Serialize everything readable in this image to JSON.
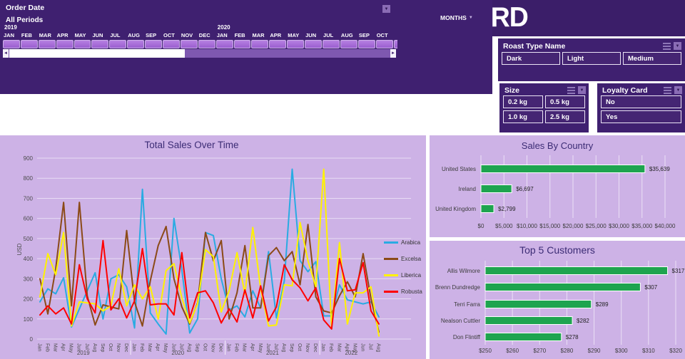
{
  "header": {
    "title": "COFFEE SALES DASHBOARD"
  },
  "colors": {
    "header_bg": "#3B1E69",
    "panel_bg": "#3F2070",
    "chart_panel_bg": "#CDB2E6",
    "timeline_bar": "#A369D6",
    "bar_green": "#1EA44F",
    "title_text": "#3C2C75",
    "axis_text": "#4C4C4C"
  },
  "order_date": {
    "title": "Order Date",
    "range_label": "All Periods",
    "granularity_label": "MONTHS",
    "years": [
      {
        "label": "2019",
        "month_index": 0
      },
      {
        "label": "2020",
        "month_index": 12
      }
    ],
    "visible_months": [
      "JAN",
      "FEB",
      "MAR",
      "APR",
      "MAY",
      "JUN",
      "JUL",
      "AUG",
      "SEP",
      "OCT",
      "NOV",
      "DEC",
      "JAN",
      "FEB",
      "MAR",
      "APR",
      "MAY",
      "JUN",
      "JUL",
      "AUG",
      "SEP",
      "OCT"
    ]
  },
  "slicers": [
    {
      "id": "roast",
      "title": "Roast Type Name",
      "columns": 3,
      "options": [
        "Dark",
        "Light",
        "Medium"
      ]
    },
    {
      "id": "size",
      "title": "Size",
      "columns": 2,
      "options": [
        "0.2 kg",
        "0.5 kg",
        "1.0 kg",
        "2.5 kg"
      ]
    },
    {
      "id": "loyalty",
      "title": "Loyalty Card",
      "columns": 1,
      "options": [
        "No",
        "Yes"
      ]
    }
  ],
  "chart_data": [
    {
      "id": "total_sales_over_time",
      "type": "line",
      "title": "Total Sales Over Time",
      "ylabel": "USD",
      "ylim": [
        0,
        900
      ],
      "ytick_step": 100,
      "grid": true,
      "legend_position": "right",
      "year_groups": [
        {
          "label": "2019",
          "span": 12
        },
        {
          "label": "2020",
          "span": 12
        },
        {
          "label": "2021",
          "span": 12
        },
        {
          "label": "2022",
          "span": 8
        }
      ],
      "categories": [
        "Jan",
        "Feb",
        "Mar",
        "Apr",
        "May",
        "Jun",
        "Jul",
        "Aug",
        "Sep",
        "Oct",
        "Nov",
        "Dec",
        "Jan",
        "Feb",
        "Mar",
        "Apr",
        "May",
        "Jun",
        "Jul",
        "Aug",
        "Sep",
        "Oct",
        "Nov",
        "Dec",
        "Jan",
        "Feb",
        "Mar",
        "Apr",
        "May",
        "Jun",
        "Jul",
        "Aug",
        "Sep",
        "Oct",
        "Nov",
        "Dec",
        "Jan",
        "Feb",
        "Mar",
        "Apr",
        "May",
        "Jun",
        "Jul",
        "Aug"
      ],
      "series": [
        {
          "name": "Arabica",
          "color": "#29ABE2",
          "values": [
            185,
            250,
            225,
            305,
            60,
            150,
            240,
            330,
            100,
            300,
            320,
            260,
            55,
            745,
            130,
            75,
            25,
            600,
            345,
            30,
            100,
            530,
            515,
            300,
            145,
            165,
            110,
            240,
            155,
            435,
            105,
            290,
            845,
            390,
            335,
            385,
            115,
            115,
            270,
            195,
            185,
            175,
            185,
            110
          ]
        },
        {
          "name": "Excelsa",
          "color": "#8B4A17",
          "values": [
            300,
            125,
            350,
            680,
            165,
            680,
            215,
            70,
            170,
            160,
            150,
            540,
            185,
            65,
            290,
            465,
            560,
            300,
            160,
            75,
            180,
            530,
            390,
            490,
            100,
            230,
            465,
            155,
            155,
            415,
            455,
            390,
            435,
            270,
            570,
            210,
            140,
            130,
            215,
            285,
            210,
            425,
            200,
            35
          ]
        },
        {
          "name": "Liberica",
          "color": "#FFF200",
          "values": [
            210,
            425,
            320,
            530,
            65,
            185,
            180,
            175,
            140,
            165,
            350,
            165,
            270,
            200,
            260,
            100,
            340,
            375,
            205,
            80,
            175,
            445,
            410,
            135,
            240,
            430,
            225,
            555,
            250,
            65,
            70,
            270,
            265,
            580,
            390,
            260,
            845,
            60,
            480,
            75,
            230,
            230,
            260,
            15
          ]
        },
        {
          "name": "Robusta",
          "color": "#FF0000",
          "values": [
            120,
            165,
            125,
            155,
            75,
            370,
            200,
            130,
            490,
            145,
            200,
            105,
            190,
            450,
            170,
            175,
            175,
            120,
            430,
            105,
            230,
            240,
            180,
            80,
            150,
            85,
            245,
            105,
            265,
            90,
            160,
            370,
            295,
            255,
            190,
            255,
            95,
            50,
            400,
            240,
            245,
            380,
            140,
            75
          ]
        }
      ]
    },
    {
      "id": "sales_by_country",
      "type": "bar",
      "orientation": "horizontal",
      "title": "Sales By Country",
      "categories": [
        "United States",
        "Ireland",
        "United Kingdom"
      ],
      "values": [
        35639,
        6697,
        2799
      ],
      "value_labels": [
        "$35,639",
        "$6,697",
        "$2,799"
      ],
      "xlim": [
        0,
        40000
      ],
      "xticks": [
        "$0",
        "$5,000",
        "$10,000",
        "$15,000",
        "$20,000",
        "$25,000",
        "$30,000",
        "$35,000",
        "$40,000"
      ],
      "bar_color": "#1EA44F",
      "grid": true
    },
    {
      "id": "top_5_customers",
      "type": "bar",
      "orientation": "horizontal",
      "title": "Top 5 Customers",
      "categories": [
        "Allis Wilmore",
        "Brenn Dundredge",
        "Terri Farra",
        "Nealson Cuttler",
        "Don Flintiff"
      ],
      "values": [
        317,
        307,
        289,
        282,
        278
      ],
      "value_labels": [
        "$317",
        "$307",
        "$289",
        "$282",
        "$278"
      ],
      "xlim": [
        250,
        320
      ],
      "xticks": [
        "$250",
        "$260",
        "$270",
        "$280",
        "$290",
        "$300",
        "$310",
        "$320"
      ],
      "bar_color": "#1EA44F",
      "grid": true
    }
  ]
}
